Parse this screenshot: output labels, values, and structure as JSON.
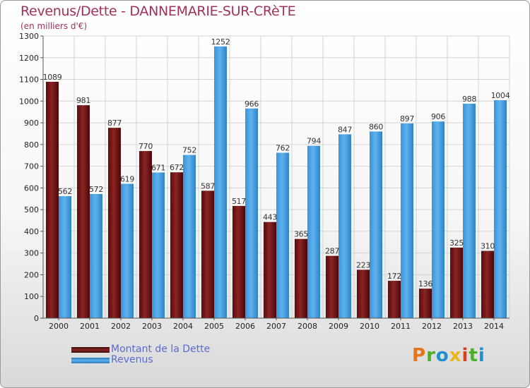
{
  "header": {
    "title": "Revenus/Dette - DANNEMARIE-SUR-CRèTE",
    "subtitle": "(en milliers d'€)"
  },
  "legend": {
    "items": [
      {
        "label": "Montant de la Dette",
        "color": "#7a1515"
      },
      {
        "label": "Revenus",
        "color": "#3d9be0"
      }
    ]
  },
  "logo": {
    "text": "Proxiti",
    "colors": [
      "#e8741a",
      "#4caf28",
      "#1f8fd0",
      "#e8b81a",
      "#d8411e",
      "#4caf28",
      "#1f8fd0"
    ]
  },
  "chart_data": {
    "type": "bar",
    "title": "Revenus/Dette - DANNEMARIE-SUR-CRèTE",
    "subtitle": "(en milliers d'€)",
    "categories": [
      "2000",
      "2001",
      "2002",
      "2003",
      "2004",
      "2005",
      "2006",
      "2007",
      "2008",
      "2009",
      "2010",
      "2011",
      "2012",
      "2013",
      "2014"
    ],
    "series": [
      {
        "name": "Montant de la Dette",
        "color": "#7a1515",
        "values": [
          1089,
          981,
          877,
          770,
          672,
          587,
          517,
          443,
          365,
          287,
          223,
          172,
          136,
          325,
          310
        ]
      },
      {
        "name": "Revenus",
        "color": "#3d9be0",
        "values": [
          562,
          572,
          619,
          671,
          752,
          1252,
          966,
          762,
          794,
          847,
          860,
          897,
          906,
          988,
          1004
        ]
      }
    ],
    "ylim": [
      0,
      1300
    ],
    "yticks": [
      0,
      100,
      200,
      300,
      400,
      500,
      600,
      700,
      800,
      900,
      1000,
      1100,
      1200,
      1300
    ],
    "grid": true,
    "legend_position": "bottom-left"
  }
}
